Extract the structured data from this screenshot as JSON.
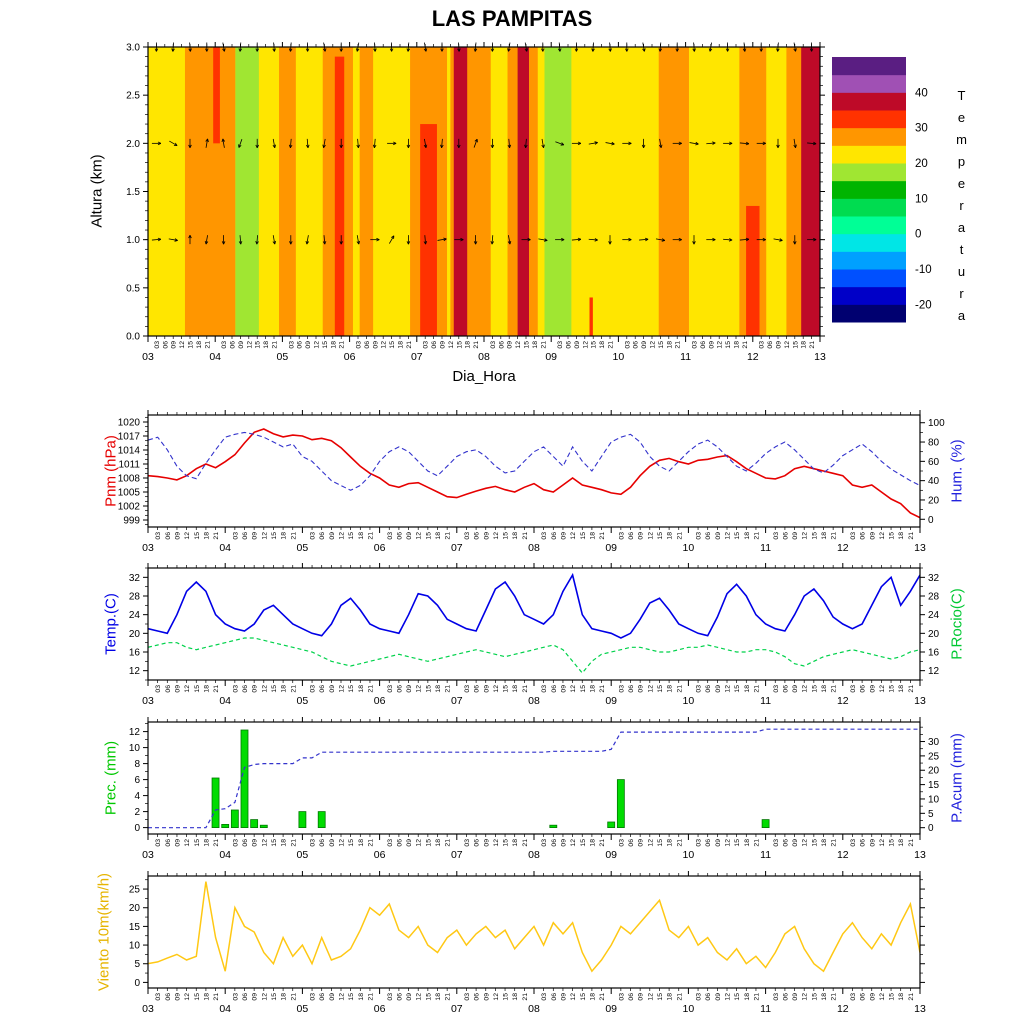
{
  "title": "LAS PAMPITAS",
  "xaxis": {
    "label": "Dia_Hora",
    "day_start": 3,
    "day_end": 13,
    "day_labels": [
      "03",
      "04",
      "05",
      "06",
      "07",
      "08",
      "09",
      "10",
      "11",
      "12",
      "13"
    ],
    "hour_labels": [
      "03",
      "06",
      "09",
      "12",
      "15",
      "18",
      "21"
    ],
    "hour_label_color": "#c03030",
    "day_label_color": "#000000"
  },
  "chart_data": [
    {
      "type": "heatmap",
      "ylabel": "Altura (km)",
      "yticks": [
        0.0,
        0.5,
        1.0,
        1.5,
        2.0,
        2.5,
        3.0
      ],
      "ymax": 3.0,
      "background_temp": 22,
      "bands": [
        {
          "x0": 3.55,
          "x1": 4.3,
          "t": 27
        },
        {
          "x0": 4.3,
          "x1": 4.65,
          "t": 17
        },
        {
          "x0": 4.95,
          "x1": 5.2,
          "t": 27
        },
        {
          "x0": 5.6,
          "x1": 6.05,
          "t": 27
        },
        {
          "x0": 6.15,
          "x1": 6.35,
          "t": 27
        },
        {
          "x0": 6.9,
          "x1": 7.45,
          "t": 27
        },
        {
          "x0": 7.5,
          "x1": 8.1,
          "t": 27
        },
        {
          "x0": 8.35,
          "x1": 8.8,
          "t": 27
        },
        {
          "x0": 8.9,
          "x1": 9.3,
          "t": 17
        },
        {
          "x0": 10.6,
          "x1": 11.05,
          "t": 27
        },
        {
          "x0": 11.8,
          "x1": 12.2,
          "t": 27
        },
        {
          "x0": 12.5,
          "x1": 13.0,
          "t": 27
        },
        {
          "x0": 3.97,
          "x1": 4.07,
          "t": 32,
          "h": 1.0,
          "top": true
        },
        {
          "x0": 5.78,
          "x1": 5.92,
          "t": 32,
          "h": 2.9
        },
        {
          "x0": 7.05,
          "x1": 7.3,
          "t": 32,
          "h": 2.2
        },
        {
          "x0": 7.55,
          "x1": 7.75,
          "t": 37
        },
        {
          "x0": 8.5,
          "x1": 8.67,
          "t": 37
        },
        {
          "x0": 9.57,
          "x1": 9.62,
          "t": 32,
          "h": 0.4
        },
        {
          "x0": 11.9,
          "x1": 12.1,
          "t": 32,
          "h": 1.35
        },
        {
          "x0": 12.72,
          "x1": 13.0,
          "t": 37
        }
      ],
      "wind_rows": [
        {
          "altitude": 3.0,
          "angles": [
            180,
            185,
            175,
            180,
            170,
            185,
            180,
            175,
            185,
            180,
            170,
            180,
            190,
            175,
            180,
            185,
            170,
            180,
            175,
            185,
            180,
            190,
            170,
            180,
            175,
            180,
            185,
            175,
            180,
            170,
            185,
            180,
            175,
            190,
            180,
            175,
            180,
            185,
            170,
            180
          ]
        },
        {
          "altitude": 2.0,
          "angles": [
            90,
            120,
            180,
            10,
            350,
            200,
            180,
            170,
            185,
            175,
            190,
            180,
            175,
            185,
            90,
            180,
            170,
            185,
            180,
            20,
            180,
            175,
            185,
            170,
            110,
            90,
            80,
            100,
            90,
            180,
            170,
            90,
            100,
            85,
            90,
            95,
            90,
            180,
            170,
            95
          ]
        },
        {
          "altitude": 1.0,
          "angles": [
            85,
            100,
            0,
            190,
            180,
            175,
            185,
            170,
            180,
            190,
            175,
            180,
            170,
            90,
            30,
            180,
            175,
            80,
            90,
            180,
            185,
            170,
            90,
            100,
            90,
            85,
            95,
            180,
            90,
            85,
            100,
            90,
            180,
            90,
            95,
            85,
            90,
            100,
            180,
            90
          ]
        }
      ],
      "colorbar": {
        "title": "Temperatura",
        "labels": [
          40,
          30,
          20,
          10,
          0,
          -10,
          -20
        ],
        "levels": [
          {
            "v": -25,
            "c": "#000070"
          },
          {
            "v": -20,
            "c": "#0000c8"
          },
          {
            "v": -15,
            "c": "#0050ff"
          },
          {
            "v": -10,
            "c": "#00a0ff"
          },
          {
            "v": -5,
            "c": "#00e6e6"
          },
          {
            "v": 0,
            "c": "#00ff96"
          },
          {
            "v": 5,
            "c": "#00dc50"
          },
          {
            "v": 10,
            "c": "#00b400"
          },
          {
            "v": 15,
            "c": "#a0e632"
          },
          {
            "v": 20,
            "c": "#ffe600"
          },
          {
            "v": 25,
            "c": "#ff9600"
          },
          {
            "v": 30,
            "c": "#ff3200"
          },
          {
            "v": 35,
            "c": "#be0a28"
          },
          {
            "v": 40,
            "c": "#a050b4"
          },
          {
            "v": 45,
            "c": "#5a1e82"
          }
        ]
      }
    },
    {
      "type": "line",
      "id": "pnm",
      "left": {
        "label": "Pnm (hPa)",
        "color": "#e60000",
        "ticks": [
          999,
          1002,
          1005,
          1008,
          1011,
          1014,
          1017,
          1020
        ],
        "minor": 1,
        "range": [
          997.5,
          1021.5
        ]
      },
      "right": {
        "label": "Hum. (%)",
        "color": "#2222dd",
        "ticks": [
          0,
          20,
          40,
          60,
          80,
          100
        ],
        "minor": 10,
        "range": [
          -8,
          108
        ]
      },
      "series": [
        {
          "name": "Pnm",
          "axis": "left",
          "color": "#e60000",
          "width": 1.6,
          "values": [
            1008.5,
            1008.3,
            1008,
            1007.6,
            1008.5,
            1010,
            1011,
            1010.2,
            1011.5,
            1013,
            1015.5,
            1017.8,
            1018.5,
            1017.5,
            1016.8,
            1017.2,
            1017,
            1016.2,
            1016.5,
            1016,
            1014.5,
            1012.5,
            1010.5,
            1009,
            1008,
            1006.5,
            1006,
            1006.8,
            1007,
            1006,
            1005,
            1004,
            1003.8,
            1004.5,
            1005.2,
            1005.8,
            1006.2,
            1005.5,
            1005,
            1006,
            1006.8,
            1005.5,
            1005,
            1006.5,
            1008,
            1006.5,
            1006,
            1005.5,
            1004.8,
            1004.5,
            1006,
            1008.5,
            1010.5,
            1011.8,
            1012.2,
            1011.5,
            1011,
            1011.8,
            1012,
            1012.5,
            1012.8,
            1011.5,
            1010,
            1009,
            1008,
            1007.8,
            1008.5,
            1010,
            1010.5,
            1010,
            1009.5,
            1009,
            1008.5,
            1006.5,
            1006,
            1006.5,
            1005,
            1003.5,
            1002.5,
            1000.5,
            999.5
          ]
        },
        {
          "name": "Hum",
          "axis": "right",
          "color": "#3333cc",
          "width": 1.1,
          "dash": "5 3",
          "values": [
            82,
            85,
            72,
            55,
            45,
            42,
            58,
            72,
            85,
            88,
            90,
            88,
            85,
            80,
            75,
            78,
            65,
            60,
            50,
            40,
            35,
            30,
            35,
            45,
            60,
            70,
            75,
            70,
            60,
            50,
            45,
            55,
            65,
            70,
            72,
            65,
            55,
            48,
            50,
            60,
            70,
            75,
            65,
            55,
            75,
            60,
            50,
            65,
            80,
            85,
            88,
            80,
            65,
            55,
            50,
            60,
            70,
            78,
            82,
            75,
            65,
            55,
            50,
            58,
            68,
            75,
            80,
            72,
            62,
            52,
            48,
            56,
            66,
            72,
            78,
            70,
            60,
            52,
            46,
            40,
            35
          ]
        }
      ]
    },
    {
      "type": "line",
      "id": "temp",
      "left": {
        "label": "Temp.(C)",
        "color": "#0000e6",
        "ticks": [
          12,
          16,
          20,
          24,
          28,
          32
        ],
        "minor": 2,
        "range": [
          10,
          34
        ]
      },
      "right": {
        "label": "P.Rocio(C)",
        "color": "#00c832",
        "ticks": [
          12,
          16,
          20,
          24,
          28,
          32
        ],
        "minor": 2,
        "range": [
          10,
          34
        ]
      },
      "series": [
        {
          "name": "Temp",
          "axis": "left",
          "color": "#0000e6",
          "width": 1.6,
          "values": [
            21,
            20.5,
            20,
            24,
            29,
            31,
            29,
            24,
            22,
            21,
            20.5,
            22,
            25,
            26,
            24,
            22,
            21,
            20,
            19.5,
            22,
            26,
            27.5,
            25,
            22,
            21,
            20.5,
            20,
            24,
            28.5,
            28,
            26,
            23,
            22,
            21,
            20.5,
            25,
            29.5,
            31,
            28,
            24,
            23,
            22,
            24,
            29,
            32.5,
            24,
            21,
            20.5,
            20,
            19,
            20,
            23,
            26.5,
            27.5,
            25,
            22,
            21,
            20,
            19.5,
            23.5,
            28.5,
            30.5,
            28,
            24,
            22,
            21,
            20.5,
            24,
            28,
            29.5,
            27,
            23.5,
            22,
            21,
            22,
            26,
            30,
            32,
            26,
            29,
            32.5
          ]
        },
        {
          "name": "P.Rocio",
          "axis": "right",
          "color": "#00d24b",
          "width": 1.2,
          "dash": "4 3",
          "values": [
            17,
            17.5,
            18,
            18,
            17,
            16.5,
            17,
            17.5,
            18,
            18.5,
            19,
            19,
            18.5,
            18,
            17.5,
            17,
            16.5,
            16,
            15,
            14,
            13.5,
            13,
            13.5,
            14,
            14.5,
            15,
            15.5,
            15,
            14.5,
            14,
            14.5,
            15,
            15.5,
            16,
            16.5,
            16,
            15.5,
            15,
            15.5,
            16,
            16.5,
            17,
            17.5,
            16.5,
            14,
            11.5,
            14,
            15.5,
            16,
            16.5,
            17,
            17,
            16.5,
            16,
            16,
            16.5,
            17,
            17,
            17.5,
            17,
            16.5,
            16,
            16,
            16.5,
            16.5,
            16,
            15,
            13.5,
            13,
            14,
            15,
            15.5,
            16,
            16.5,
            16,
            15.5,
            15,
            14.5,
            15,
            16,
            16.5
          ]
        }
      ]
    },
    {
      "type": "mixed",
      "id": "prec",
      "left": {
        "label": "Prec. (mm)",
        "color": "#00c800",
        "ticks": [
          0,
          2,
          4,
          6,
          8,
          10,
          12
        ],
        "minor": 1,
        "range": [
          -0.8,
          13.2
        ]
      },
      "right": {
        "label": "P.Acum (mm)",
        "color": "#2222dd",
        "ticks": [
          0,
          5,
          10,
          15,
          20,
          25,
          30
        ],
        "minor": 2.5,
        "range": [
          -2.2,
          36.8
        ]
      },
      "series": [
        {
          "name": "Prec",
          "axis": "left",
          "type": "bar",
          "color": "#00dc00",
          "stroke": "#007800",
          "values": [
            0,
            0,
            0,
            0,
            0,
            0,
            0,
            6.2,
            0.4,
            2.2,
            12.2,
            1,
            0.3,
            0,
            0,
            0,
            2,
            0,
            2,
            0,
            0,
            0,
            0,
            0,
            0,
            0,
            0,
            0,
            0,
            0,
            0,
            0,
            0,
            0,
            0,
            0,
            0,
            0,
            0,
            0,
            0,
            0,
            0.3,
            0,
            0,
            0,
            0,
            0,
            0.7,
            6,
            0,
            0,
            0,
            0,
            0,
            0,
            0,
            0,
            0,
            0,
            0,
            0,
            0,
            0,
            1,
            0,
            0,
            0,
            0,
            0,
            0,
            0,
            0,
            0,
            0,
            0,
            0,
            0,
            0,
            0,
            0
          ]
        },
        {
          "name": "P.Acum",
          "axis": "right",
          "color": "#3333cc",
          "width": 1.2,
          "dash": "4 3",
          "values": [
            0,
            0,
            0,
            0,
            0,
            0,
            0,
            6.2,
            6.6,
            8.8,
            21,
            22,
            22.3,
            22.3,
            22.3,
            22.3,
            24.3,
            24.3,
            26.3,
            26.3,
            26.3,
            26.3,
            26.3,
            26.3,
            26.3,
            26.3,
            26.3,
            26.3,
            26.3,
            26.3,
            26.3,
            26.3,
            26.3,
            26.3,
            26.3,
            26.3,
            26.3,
            26.3,
            26.3,
            26.3,
            26.3,
            26.3,
            26.6,
            26.6,
            26.6,
            26.6,
            26.6,
            26.6,
            27.3,
            33.3,
            33.3,
            33.3,
            33.3,
            33.3,
            33.3,
            33.3,
            33.3,
            33.3,
            33.3,
            33.3,
            33.3,
            33.3,
            33.3,
            33.3,
            34.3,
            34.3,
            34.3,
            34.3,
            34.3,
            34.3,
            34.3,
            34.3,
            34.3,
            34.3,
            34.3,
            34.3,
            34.3,
            34.3,
            34.3,
            34.3,
            34.3
          ]
        }
      ]
    },
    {
      "type": "line",
      "id": "viento",
      "left": {
        "label": "Viento 10m(km/h)",
        "color": "#e6b400",
        "ticks": [
          0,
          5,
          10,
          15,
          20,
          25
        ],
        "minor": 2.5,
        "range": [
          -1.5,
          28.5
        ]
      },
      "right": {
        "label": "",
        "color": "#000000",
        "ticks": [
          0,
          5,
          10,
          15,
          20,
          25
        ],
        "minor": 2.5,
        "range": [
          -1.5,
          28.5
        ],
        "hide_labels": true
      },
      "series": [
        {
          "name": "Viento",
          "axis": "left",
          "color": "#ffc814",
          "width": 1.5,
          "values": [
            5,
            5.5,
            6.5,
            7.5,
            6,
            7,
            27,
            12,
            3,
            20,
            15,
            13.5,
            8,
            5,
            12,
            7,
            10,
            5,
            12,
            6,
            7,
            9,
            14,
            20,
            18,
            21,
            14,
            12,
            15,
            10,
            8,
            12,
            14,
            10,
            13,
            15,
            12,
            14,
            9,
            12,
            15,
            10,
            16,
            13,
            16,
            8,
            3,
            6,
            10,
            15,
            13,
            16,
            19,
            22,
            14,
            12,
            15,
            10,
            12,
            8,
            6,
            9,
            5,
            7,
            4,
            8,
            13,
            15,
            9,
            5,
            3,
            8,
            13,
            16,
            12,
            9,
            13,
            10,
            16,
            21,
            8
          ]
        }
      ]
    }
  ]
}
